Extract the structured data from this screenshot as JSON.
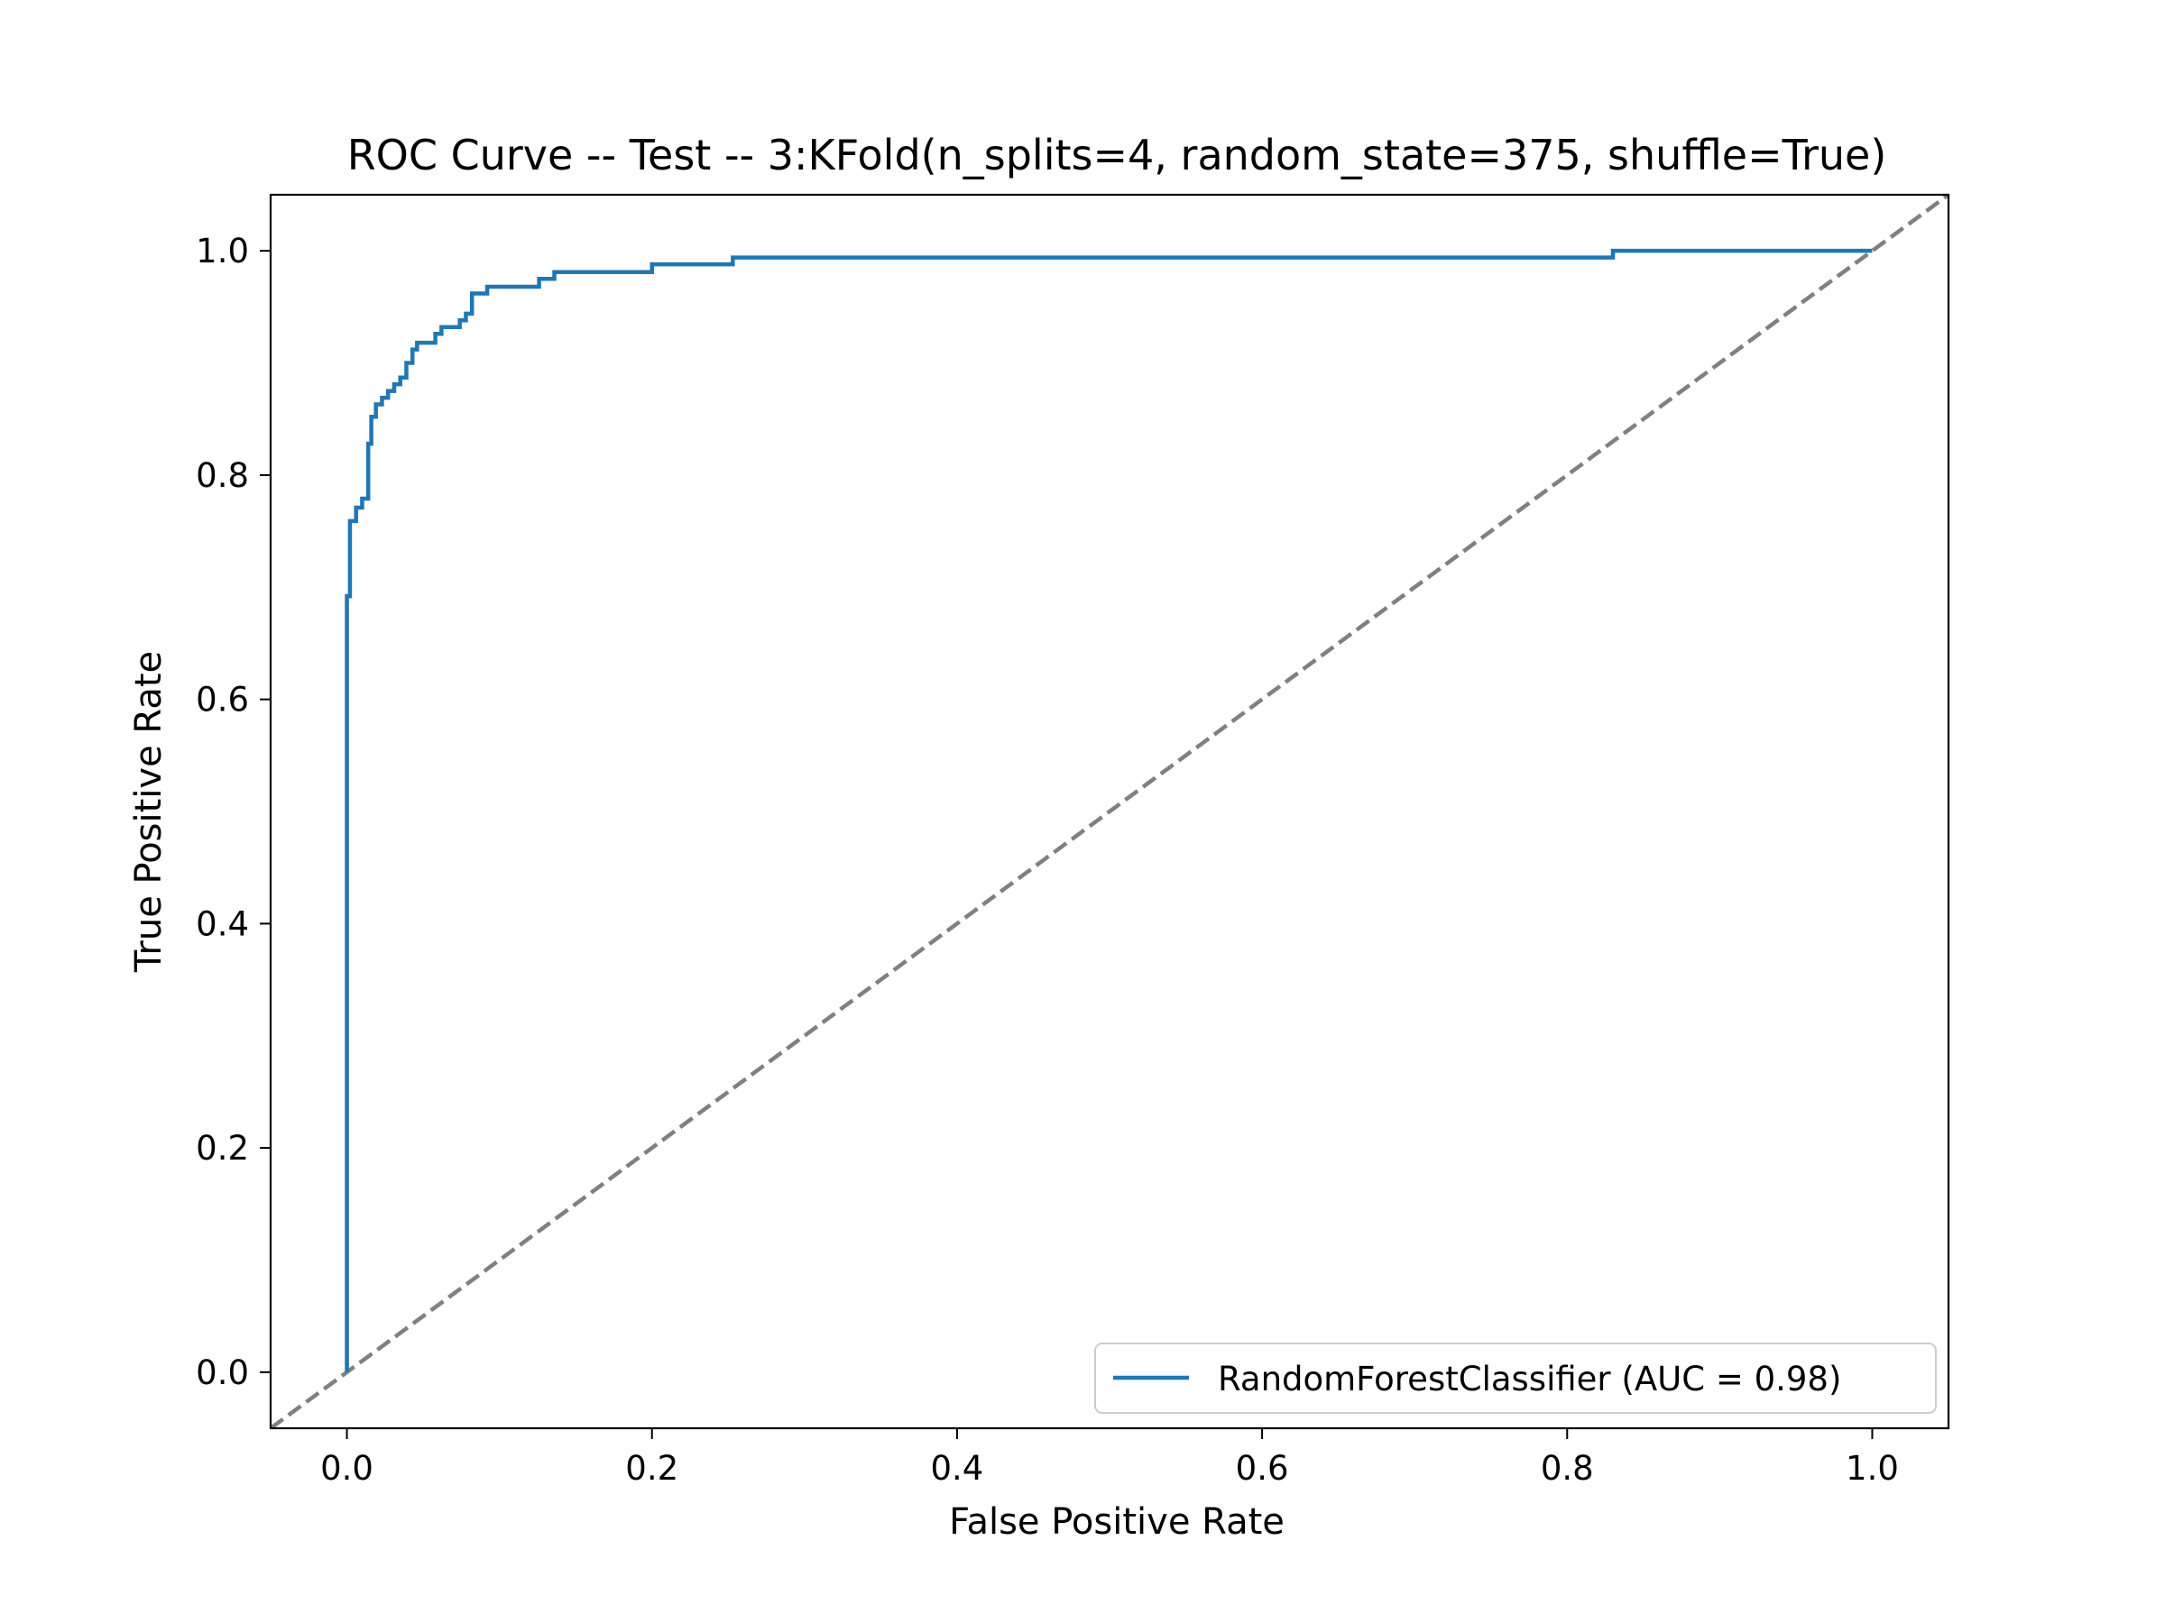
{
  "chart_data": {
    "type": "line",
    "title": "ROC Curve -- Test -- 3:KFold(n_splits=4, random_state=375, shuffle=True)",
    "xlabel": "False Positive Rate",
    "ylabel": "True Positive Rate",
    "xlim": [
      -0.05,
      1.05
    ],
    "ylim": [
      -0.05,
      1.05
    ],
    "xticks": [
      0.0,
      0.2,
      0.4,
      0.6,
      0.8,
      1.0
    ],
    "xtick_labels": [
      "0.0",
      "0.2",
      "0.4",
      "0.6",
      "0.8",
      "1.0"
    ],
    "yticks": [
      0.0,
      0.2,
      0.4,
      0.6,
      0.8,
      1.0
    ],
    "ytick_labels": [
      "0.0",
      "0.2",
      "0.4",
      "0.6",
      "0.8",
      "1.0"
    ],
    "grid": false,
    "legend": {
      "position": "lower-right"
    },
    "series": [
      {
        "name": "RandomForestClassifier (AUC = 0.98)",
        "color": "#1f77b4",
        "style": "solid",
        "x": [
          0.0,
          0.0,
          0.002,
          0.002,
          0.006,
          0.006,
          0.01,
          0.01,
          0.014,
          0.014,
          0.016,
          0.016,
          0.019,
          0.019,
          0.023,
          0.023,
          0.027,
          0.027,
          0.031,
          0.031,
          0.035,
          0.035,
          0.039,
          0.039,
          0.043,
          0.043,
          0.046,
          0.046,
          0.058,
          0.058,
          0.062,
          0.062,
          0.074,
          0.074,
          0.078,
          0.078,
          0.082,
          0.082,
          0.092,
          0.092,
          0.126,
          0.126,
          0.136,
          0.136,
          0.2,
          0.2,
          0.253,
          0.253,
          0.83,
          0.83,
          0.905,
          0.905,
          1.0
        ],
        "y": [
          0.0,
          0.692,
          0.692,
          0.759,
          0.759,
          0.771,
          0.771,
          0.779,
          0.779,
          0.828,
          0.828,
          0.852,
          0.852,
          0.863,
          0.863,
          0.869,
          0.869,
          0.875,
          0.875,
          0.881,
          0.881,
          0.887,
          0.887,
          0.9,
          0.9,
          0.912,
          0.912,
          0.918,
          0.918,
          0.926,
          0.926,
          0.932,
          0.932,
          0.938,
          0.938,
          0.944,
          0.944,
          0.962,
          0.962,
          0.968,
          0.968,
          0.975,
          0.975,
          0.981,
          0.981,
          0.988,
          0.988,
          0.994,
          0.994,
          1.0,
          1.0,
          1.0,
          1.0
        ]
      },
      {
        "name": "",
        "color": "#808080",
        "style": "dashed",
        "x": [
          -0.05,
          1.05
        ],
        "y": [
          -0.05,
          1.05
        ]
      }
    ]
  }
}
